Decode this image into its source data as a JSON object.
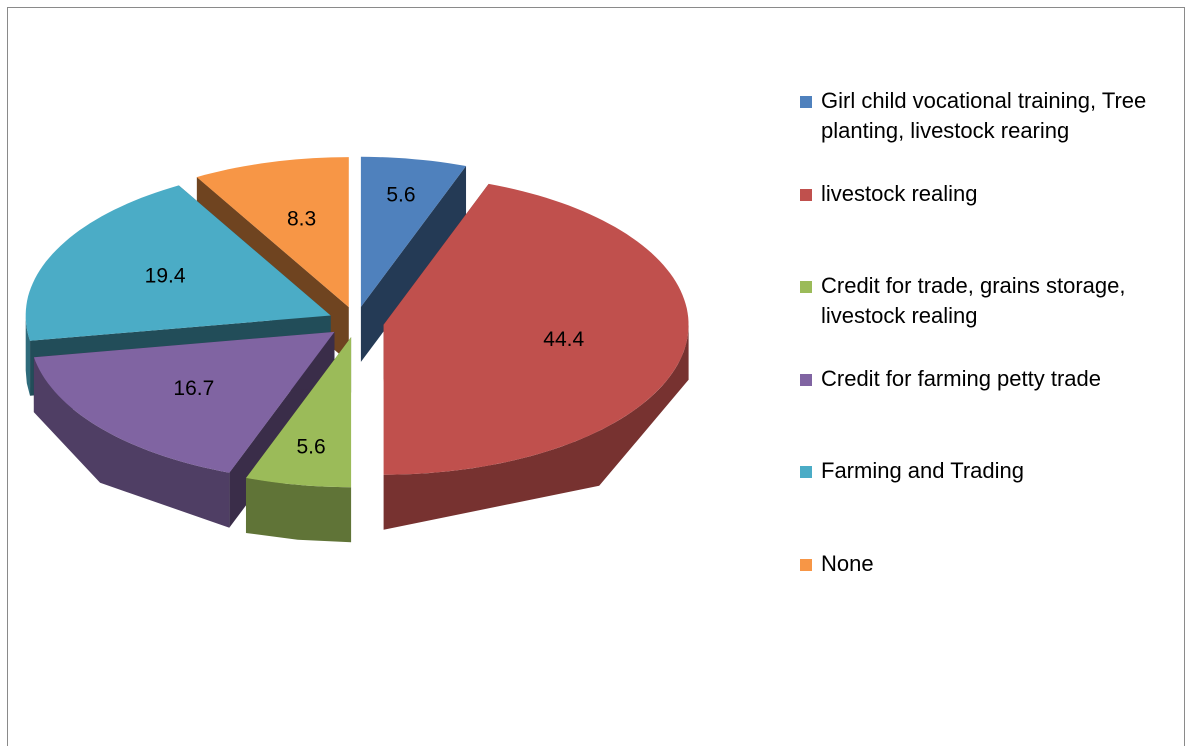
{
  "chart_data": {
    "type": "pie",
    "categories": [
      "Girl child vocational training, Tree planting, livestock rearing",
      "livestock realing",
      "Credit for trade, grains storage, livestock realing",
      "Credit for farming petty trade",
      "Farming and Trading",
      "None"
    ],
    "values": [
      5.6,
      44.4,
      5.6,
      16.7,
      19.4,
      8.3
    ],
    "colors": [
      "#4f81bd",
      "#c0504d",
      "#9bbb59",
      "#8064a2",
      "#4bacc6",
      "#f79646"
    ],
    "legend": "right"
  }
}
